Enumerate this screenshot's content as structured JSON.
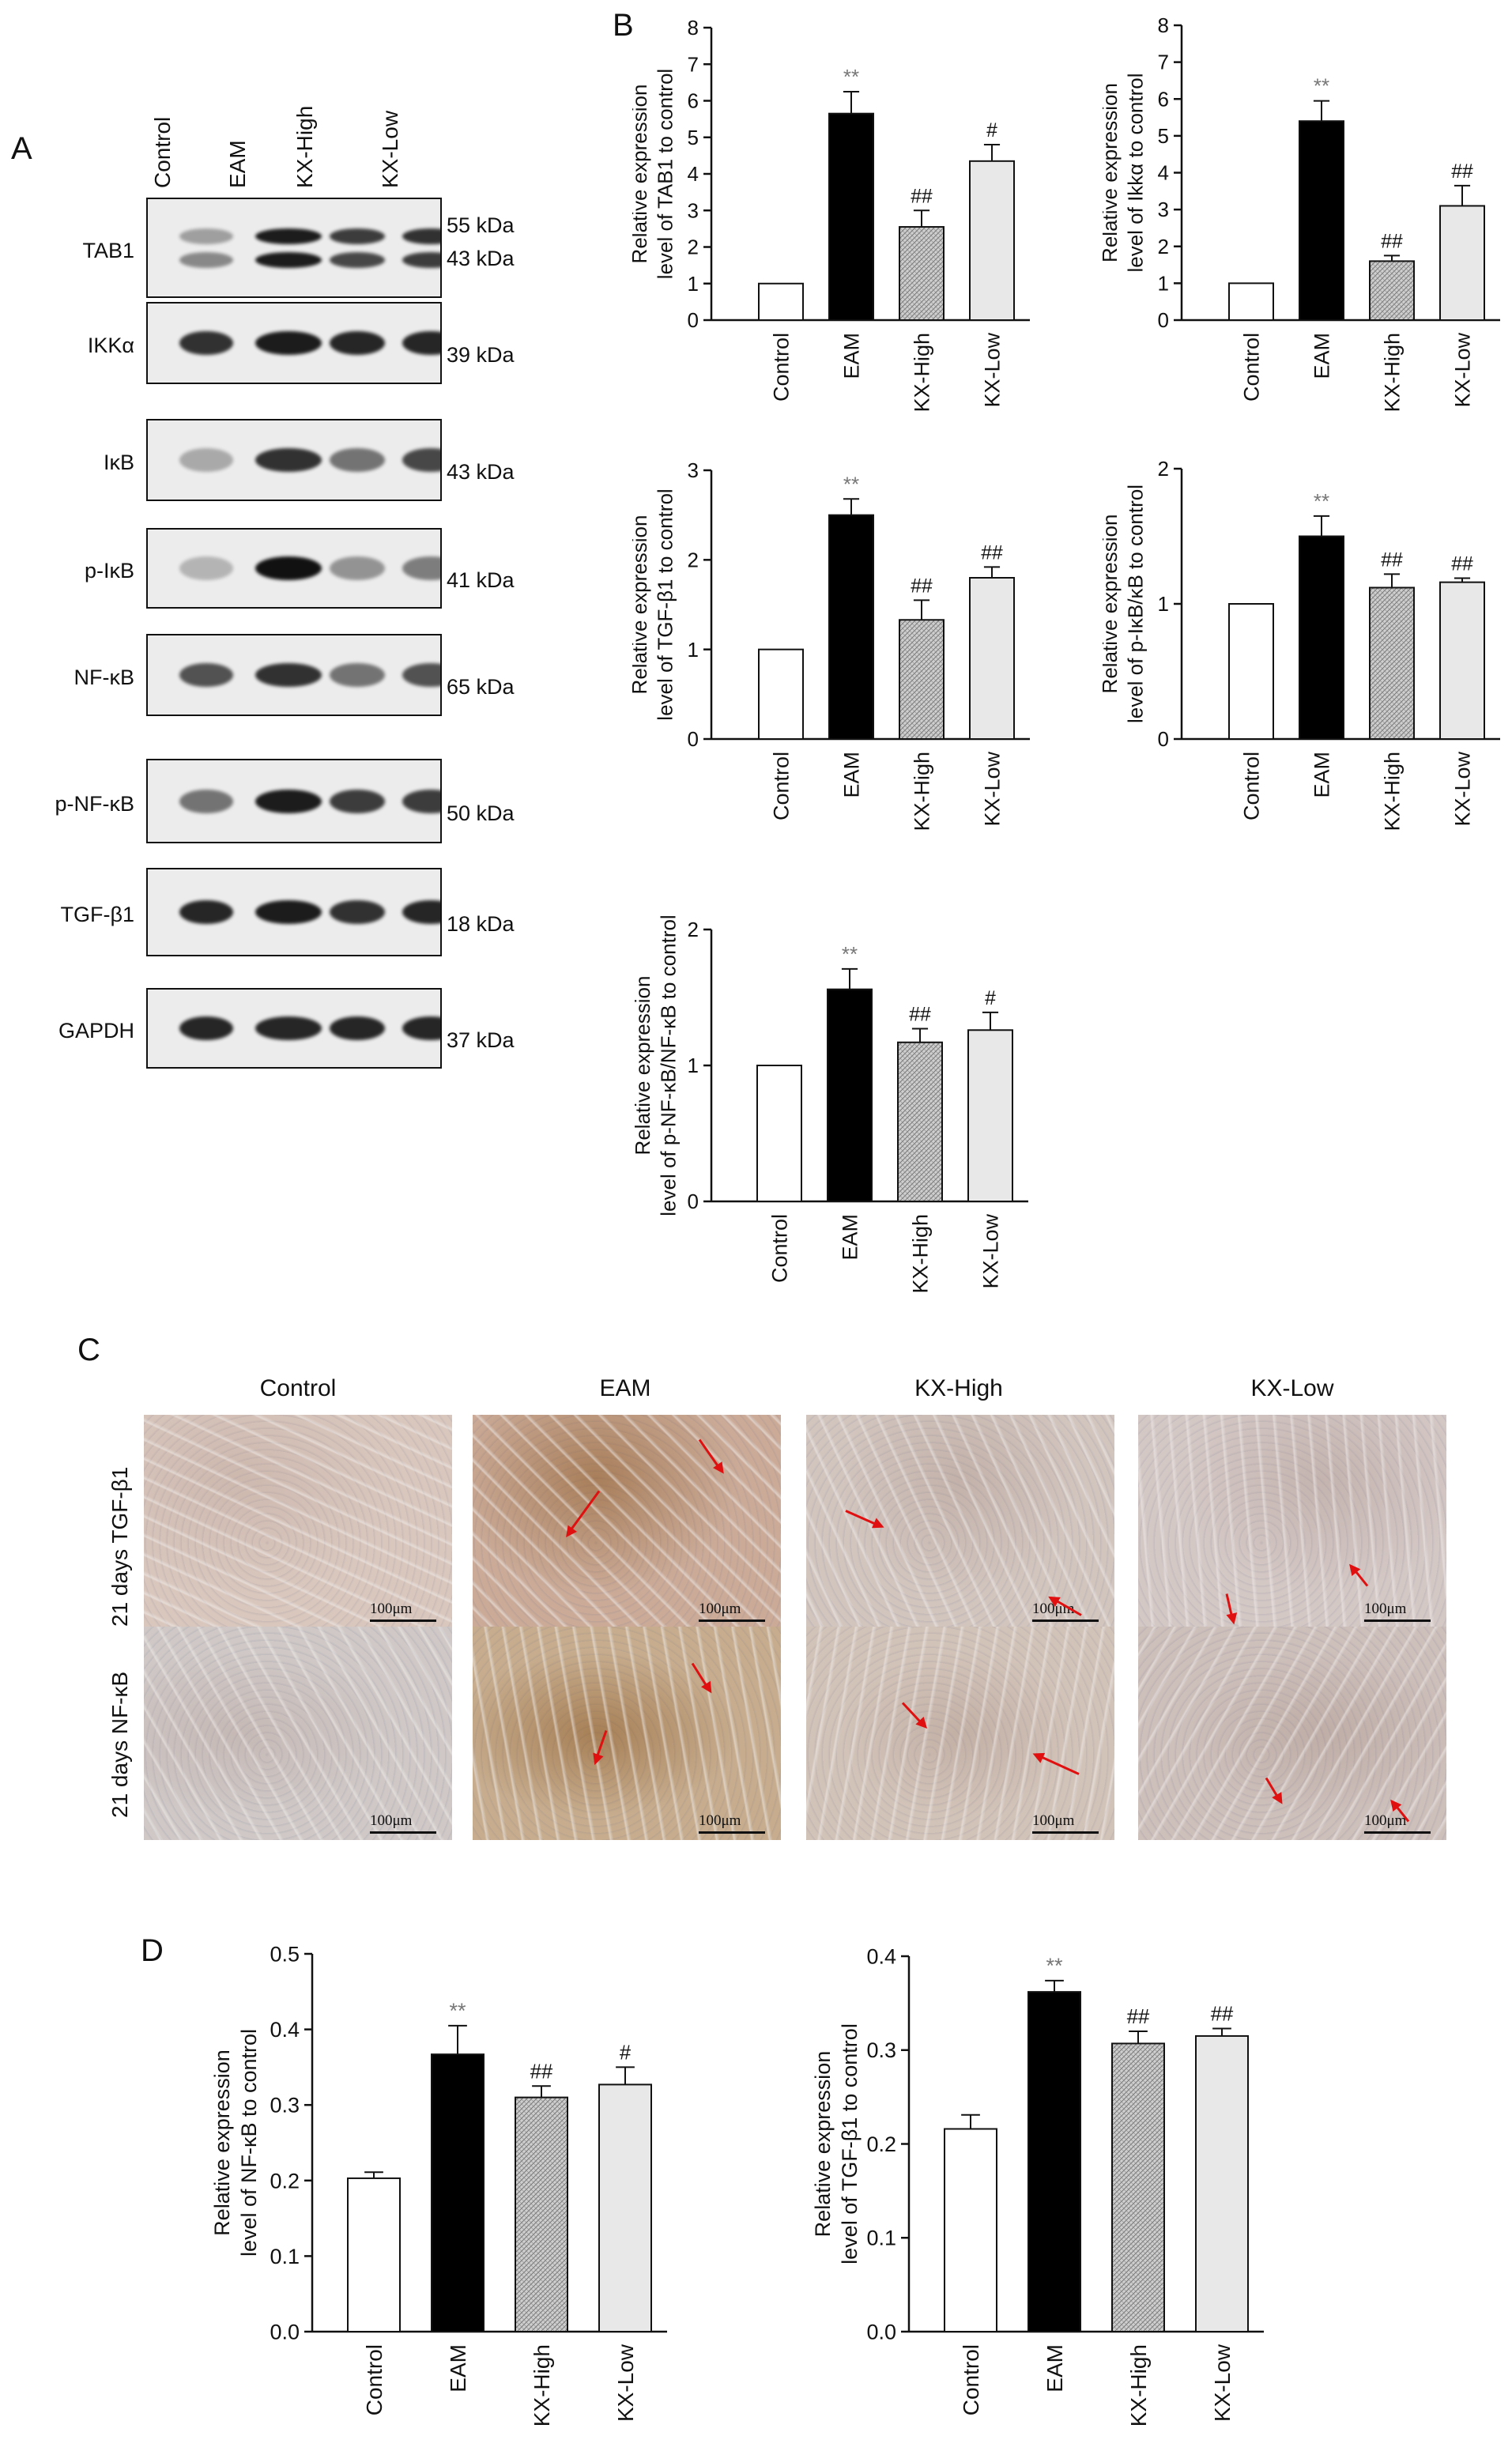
{
  "panels": {
    "a": "A",
    "b": "B",
    "c": "C",
    "d": "D"
  },
  "blot": {
    "lanes": [
      "Control",
      "EAM",
      "KX-High",
      "KX-Low"
    ],
    "rows": [
      {
        "name": "TAB1",
        "kda": [
          "55 kDa",
          "43 kDa"
        ]
      },
      {
        "name": "IKKα",
        "kda": [
          "39 kDa"
        ]
      },
      {
        "name": "IκB",
        "kda": [
          "43 kDa"
        ]
      },
      {
        "name": "p-IκB",
        "kda": [
          "41 kDa"
        ]
      },
      {
        "name": "NF-κB",
        "kda": [
          "65 kDa"
        ]
      },
      {
        "name": "p-NF-κB",
        "kda": [
          "50 kDa"
        ]
      },
      {
        "name": "TGF-β1",
        "kda": [
          "18 kDa"
        ]
      },
      {
        "name": "GAPDH",
        "kda": [
          "37 kDa"
        ]
      }
    ]
  },
  "ihc": {
    "columns": [
      "Control",
      "EAM",
      "KX-High",
      "KX-Low"
    ],
    "rows": [
      "21 days TGF-β1",
      "21 days  NF-κB"
    ],
    "scale_label": "100μm"
  },
  "chart_data": [
    {
      "type": "bar",
      "panel": "B",
      "categories": [
        "Control",
        "EAM",
        "KX-High",
        "KX-Low"
      ],
      "values": [
        1.0,
        5.65,
        2.55,
        4.35
      ],
      "errors": [
        0,
        0.6,
        0.45,
        0.45
      ],
      "annotations": [
        "",
        "**",
        "##",
        "#"
      ],
      "ylabel": [
        "Relative expression",
        "level of TAB1 to control"
      ],
      "ylim": [
        0,
        8
      ],
      "yticks": [
        0,
        1,
        2,
        3,
        4,
        5,
        6,
        7,
        8
      ]
    },
    {
      "type": "bar",
      "panel": "B",
      "categories": [
        "Control",
        "EAM",
        "KX-High",
        "KX-Low"
      ],
      "values": [
        1.0,
        5.4,
        1.6,
        3.1
      ],
      "errors": [
        0,
        0.55,
        0.15,
        0.55
      ],
      "annotations": [
        "",
        "**",
        "##",
        "##"
      ],
      "ylabel": [
        "Relative expression",
        "level of Ikkα to control"
      ],
      "ylim": [
        0,
        8
      ],
      "yticks": [
        0,
        1,
        2,
        3,
        4,
        5,
        6,
        7,
        8
      ]
    },
    {
      "type": "bar",
      "panel": "B",
      "categories": [
        "Control",
        "EAM",
        "KX-High",
        "KX-Low"
      ],
      "values": [
        1.0,
        2.5,
        1.33,
        1.8
      ],
      "errors": [
        0,
        0.18,
        0.22,
        0.12
      ],
      "annotations": [
        "",
        "**",
        "##",
        "##"
      ],
      "ylabel": [
        "Relative expression",
        "level of TGF-β1 to control"
      ],
      "ylim": [
        0,
        3
      ],
      "yticks": [
        0,
        1,
        2,
        3
      ]
    },
    {
      "type": "bar",
      "panel": "B",
      "categories": [
        "Control",
        "EAM",
        "KX-High",
        "KX-Low"
      ],
      "values": [
        1.0,
        1.5,
        1.12,
        1.16
      ],
      "errors": [
        0,
        0.15,
        0.1,
        0.03
      ],
      "annotations": [
        "",
        "**",
        "##",
        "##"
      ],
      "ylabel": [
        "Relative expression",
        "level of p-IκB/κB to control"
      ],
      "ylim": [
        0,
        2
      ],
      "yticks": [
        0,
        1,
        2
      ]
    },
    {
      "type": "bar",
      "panel": "B",
      "categories": [
        "Control",
        "EAM",
        "KX-High",
        "KX-Low"
      ],
      "values": [
        1.0,
        1.56,
        1.17,
        1.26
      ],
      "errors": [
        0,
        0.15,
        0.1,
        0.13
      ],
      "annotations": [
        "",
        "**",
        "##",
        "#"
      ],
      "ylabel": [
        "Relative expression",
        "level of p-NF-κB/NF-κB to control"
      ],
      "ylim": [
        0,
        2
      ],
      "yticks": [
        0,
        1,
        2
      ]
    },
    {
      "type": "bar",
      "panel": "D",
      "categories": [
        "Control",
        "EAM",
        "KX-High",
        "KX-Low"
      ],
      "values": [
        0.203,
        0.367,
        0.31,
        0.327
      ],
      "errors": [
        0.008,
        0.038,
        0.015,
        0.023
      ],
      "annotations": [
        "",
        "**",
        "##",
        "#"
      ],
      "ylabel": [
        "Relative expression",
        "level of NF-κB to control"
      ],
      "ylim": [
        0,
        0.5
      ],
      "yticks": [
        "0.0",
        "0.1",
        "0.2",
        "0.3",
        "0.4",
        "0.5"
      ]
    },
    {
      "type": "bar",
      "panel": "D",
      "categories": [
        "Control",
        "EAM",
        "KX-High",
        "KX-Low"
      ],
      "values": [
        0.216,
        0.362,
        0.307,
        0.315
      ],
      "errors": [
        0.015,
        0.012,
        0.013,
        0.008
      ],
      "annotations": [
        "",
        "**",
        "##",
        "##"
      ],
      "ylabel": [
        "Relative expression",
        "level of TGF-β1 to control"
      ],
      "ylim": [
        0,
        0.4
      ],
      "yticks": [
        "0.0",
        "0.1",
        "0.2",
        "0.3",
        "0.4"
      ]
    }
  ]
}
